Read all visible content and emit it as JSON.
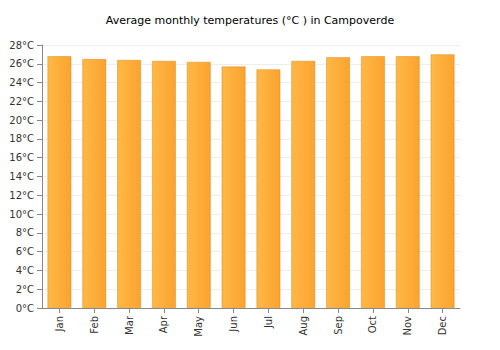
{
  "chart_data": {
    "type": "bar",
    "title": "Average monthly temperatures (°C ) in Campoverde",
    "categories": [
      "Jan",
      "Feb",
      "Mar",
      "Apr",
      "May",
      "Jun",
      "Jul",
      "Aug",
      "Sep",
      "Oct",
      "Nov",
      "Dec"
    ],
    "values": [
      26.8,
      26.5,
      26.4,
      26.3,
      26.2,
      25.7,
      25.4,
      26.3,
      26.7,
      26.8,
      26.8,
      27.0
    ],
    "color": "#fba330",
    "ylim": [
      0,
      28
    ],
    "yticks": [
      {
        "value": 0,
        "label": "0°C"
      },
      {
        "value": 2,
        "label": "2°C"
      },
      {
        "value": 4,
        "label": "4°C"
      },
      {
        "value": 6,
        "label": "6°C"
      },
      {
        "value": 8,
        "label": "8°C"
      },
      {
        "value": 10,
        "label": "10°C"
      },
      {
        "value": 12,
        "label": "12°C"
      },
      {
        "value": 14,
        "label": "14°C"
      },
      {
        "value": 16,
        "label": "16°C"
      },
      {
        "value": 18,
        "label": "18°C"
      },
      {
        "value": 20,
        "label": "20°C"
      },
      {
        "value": 22,
        "label": "22°C"
      },
      {
        "value": 24,
        "label": "24°C"
      },
      {
        "value": 26,
        "label": "26°C"
      },
      {
        "value": 28,
        "label": "28°C"
      }
    ],
    "grid": true
  }
}
